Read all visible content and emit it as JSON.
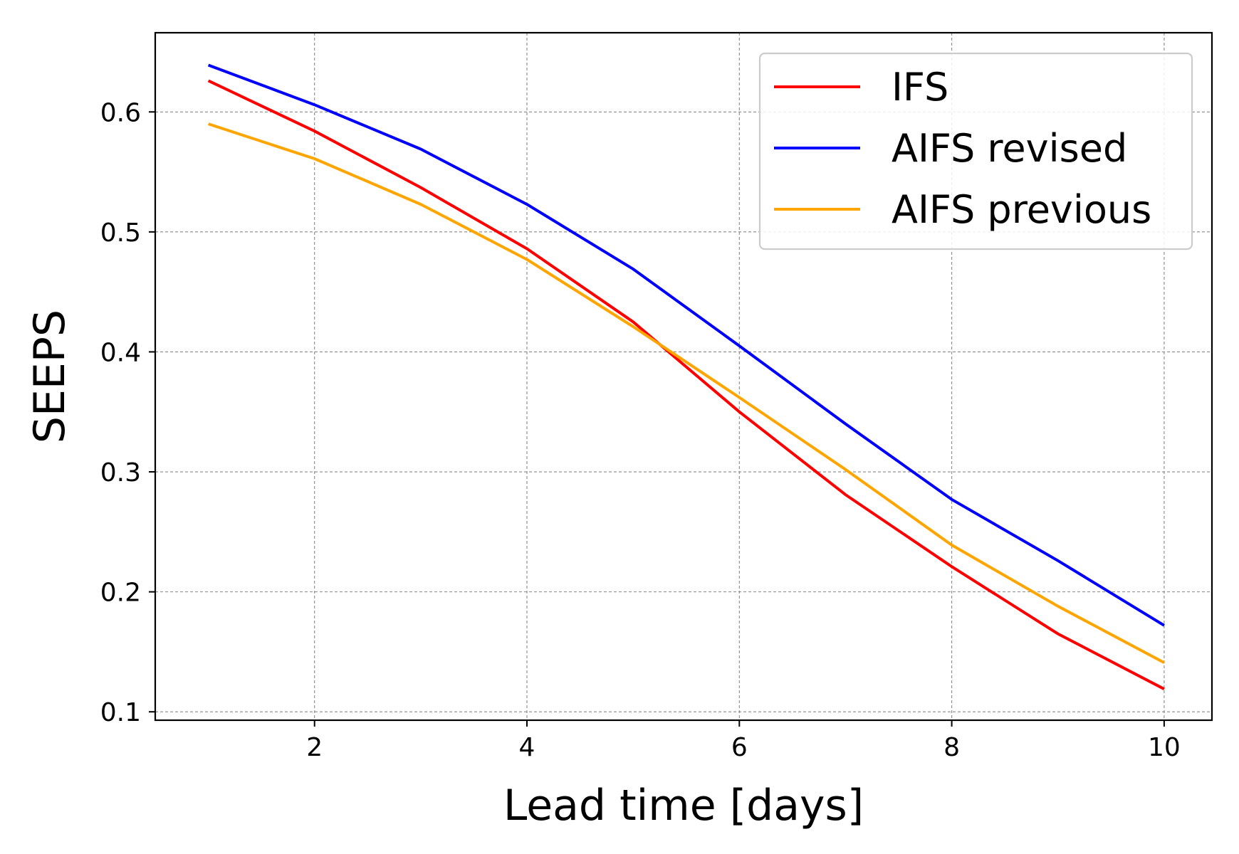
{
  "chart_data": {
    "type": "line",
    "title": "",
    "xlabel": "Lead time [days]",
    "ylabel": "SEEPS",
    "xlim": [
      0.5,
      10.45
    ],
    "ylim": [
      0.093,
      0.666
    ],
    "xticks": [
      2,
      4,
      6,
      8,
      10
    ],
    "xtick_labels": [
      "2",
      "4",
      "6",
      "8",
      "10"
    ],
    "yticks": [
      0.1,
      0.2,
      0.3,
      0.4,
      0.5,
      0.6
    ],
    "ytick_labels": [
      "0.1",
      "0.2",
      "0.3",
      "0.4",
      "0.5",
      "0.6"
    ],
    "grid": true,
    "legend_position": "top-right",
    "x": [
      1,
      2,
      3,
      4,
      5,
      6,
      7,
      8,
      9,
      10
    ],
    "series": [
      {
        "name": "IFS",
        "color": "#ff0000",
        "values": [
          0.626,
          0.584,
          0.537,
          0.486,
          0.425,
          0.35,
          0.281,
          0.221,
          0.165,
          0.119
        ]
      },
      {
        "name": "AIFS revised",
        "color": "#0000ff",
        "values": [
          0.639,
          0.606,
          0.569,
          0.523,
          0.469,
          0.405,
          0.34,
          0.277,
          0.226,
          0.172
        ]
      },
      {
        "name": "AIFS previous",
        "color": "#ffa500",
        "values": [
          0.59,
          0.561,
          0.523,
          0.477,
          0.421,
          0.362,
          0.302,
          0.239,
          0.188,
          0.141
        ]
      }
    ]
  }
}
